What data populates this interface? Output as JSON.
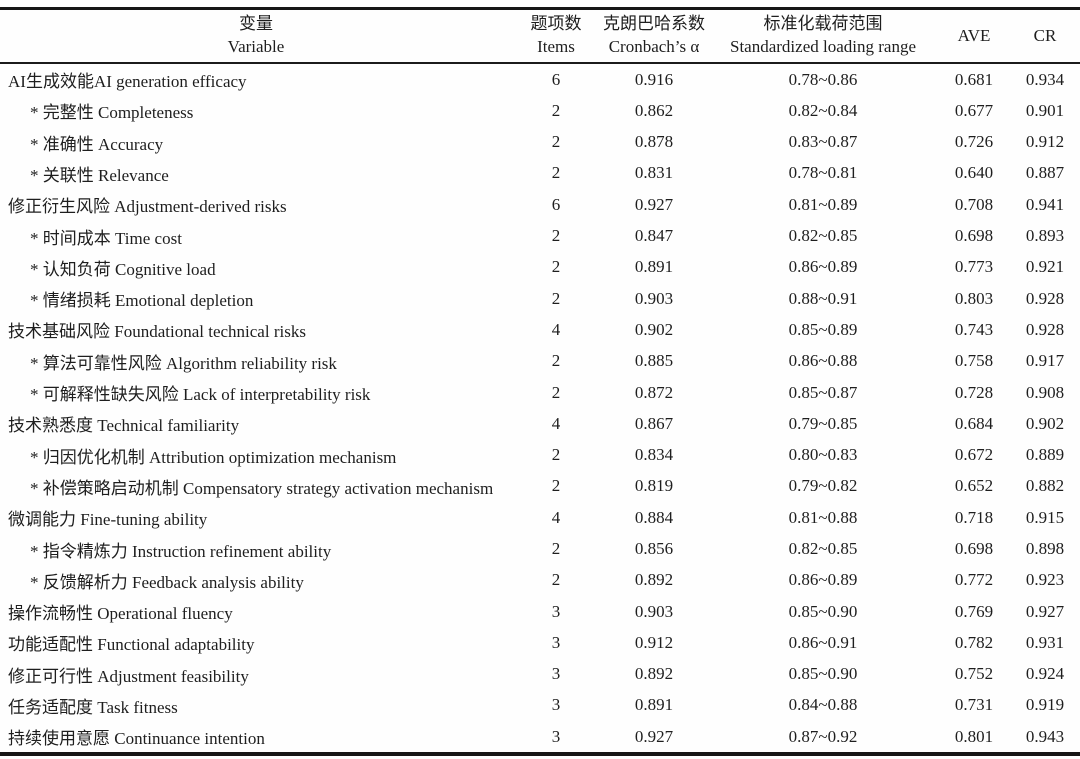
{
  "header": {
    "variable": {
      "zh": "变量",
      "en": "Variable"
    },
    "items": {
      "zh": "题项数",
      "en": "Items"
    },
    "cronbach": {
      "zh": "克朗巴哈系数",
      "en": "Cronbach’s α"
    },
    "loading": {
      "zh": "标准化载荷范围",
      "en": "Standardized loading range"
    },
    "ave": "AVE",
    "cr": "CR"
  },
  "rows": [
    {
      "label": "AI生成效能AI generation efficacy",
      "level": "main",
      "items": "6",
      "alpha": "0.916",
      "loading": "0.78~0.86",
      "ave": "0.681",
      "cr": "0.934"
    },
    {
      "label": "* 完整性 Completeness",
      "level": "sub",
      "items": "2",
      "alpha": "0.862",
      "loading": "0.82~0.84",
      "ave": "0.677",
      "cr": "0.901"
    },
    {
      "label": "* 准确性 Accuracy",
      "level": "sub",
      "items": "2",
      "alpha": "0.878",
      "loading": "0.83~0.87",
      "ave": "0.726",
      "cr": "0.912"
    },
    {
      "label": "* 关联性 Relevance",
      "level": "sub",
      "items": "2",
      "alpha": "0.831",
      "loading": "0.78~0.81",
      "ave": "0.640",
      "cr": "0.887"
    },
    {
      "label": "修正衍生风险 Adjustment-derived risks",
      "level": "main",
      "items": "6",
      "alpha": "0.927",
      "loading": "0.81~0.89",
      "ave": "0.708",
      "cr": "0.941"
    },
    {
      "label": "* 时间成本 Time cost",
      "level": "sub",
      "items": "2",
      "alpha": "0.847",
      "loading": "0.82~0.85",
      "ave": "0.698",
      "cr": "0.893"
    },
    {
      "label": "* 认知负荷 Cognitive load",
      "level": "sub",
      "items": "2",
      "alpha": "0.891",
      "loading": "0.86~0.89",
      "ave": "0.773",
      "cr": "0.921"
    },
    {
      "label": "* 情绪损耗 Emotional depletion",
      "level": "sub",
      "items": "2",
      "alpha": "0.903",
      "loading": "0.88~0.91",
      "ave": "0.803",
      "cr": "0.928"
    },
    {
      "label": "技术基础风险 Foundational technical risks",
      "level": "main",
      "items": "4",
      "alpha": "0.902",
      "loading": "0.85~0.89",
      "ave": "0.743",
      "cr": "0.928"
    },
    {
      "label": "* 算法可靠性风险 Algorithm reliability risk",
      "level": "sub",
      "items": "2",
      "alpha": "0.885",
      "loading": "0.86~0.88",
      "ave": "0.758",
      "cr": "0.917"
    },
    {
      "label": "* 可解释性缺失风险 Lack of interpretability risk",
      "level": "sub",
      "items": "2",
      "alpha": "0.872",
      "loading": "0.85~0.87",
      "ave": "0.728",
      "cr": "0.908"
    },
    {
      "label": "技术熟悉度 Technical familiarity",
      "level": "main",
      "items": "4",
      "alpha": "0.867",
      "loading": "0.79~0.85",
      "ave": "0.684",
      "cr": "0.902"
    },
    {
      "label": "* 归因优化机制 Attribution optimization mechanism",
      "level": "sub",
      "items": "2",
      "alpha": "0.834",
      "loading": "0.80~0.83",
      "ave": "0.672",
      "cr": "0.889"
    },
    {
      "label": "* 补偿策略启动机制 Compensatory strategy activation mechanism",
      "level": "sub",
      "items": "2",
      "alpha": "0.819",
      "loading": "0.79~0.82",
      "ave": "0.652",
      "cr": "0.882"
    },
    {
      "label": "微调能力 Fine-tuning ability",
      "level": "main",
      "items": "4",
      "alpha": "0.884",
      "loading": "0.81~0.88",
      "ave": "0.718",
      "cr": "0.915"
    },
    {
      "label": "* 指令精炼力 Instruction refinement ability",
      "level": "sub",
      "items": "2",
      "alpha": "0.856",
      "loading": "0.82~0.85",
      "ave": "0.698",
      "cr": "0.898"
    },
    {
      "label": "* 反馈解析力 Feedback analysis ability",
      "level": "sub",
      "items": "2",
      "alpha": "0.892",
      "loading": "0.86~0.89",
      "ave": "0.772",
      "cr": "0.923"
    },
    {
      "label": "操作流畅性 Operational fluency",
      "level": "main",
      "items": "3",
      "alpha": "0.903",
      "loading": "0.85~0.90",
      "ave": "0.769",
      "cr": "0.927"
    },
    {
      "label": "功能适配性 Functional adaptability",
      "level": "main",
      "items": "3",
      "alpha": "0.912",
      "loading": "0.86~0.91",
      "ave": "0.782",
      "cr": "0.931"
    },
    {
      "label": "修正可行性 Adjustment feasibility",
      "level": "main",
      "items": "3",
      "alpha": "0.892",
      "loading": "0.85~0.90",
      "ave": "0.752",
      "cr": "0.924"
    },
    {
      "label": "任务适配度 Task fitness",
      "level": "main",
      "items": "3",
      "alpha": "0.891",
      "loading": "0.84~0.88",
      "ave": "0.731",
      "cr": "0.919"
    },
    {
      "label": "持续使用意愿 Continuance intention",
      "level": "main",
      "items": "3",
      "alpha": "0.927",
      "loading": "0.87~0.92",
      "ave": "0.801",
      "cr": "0.943"
    }
  ]
}
